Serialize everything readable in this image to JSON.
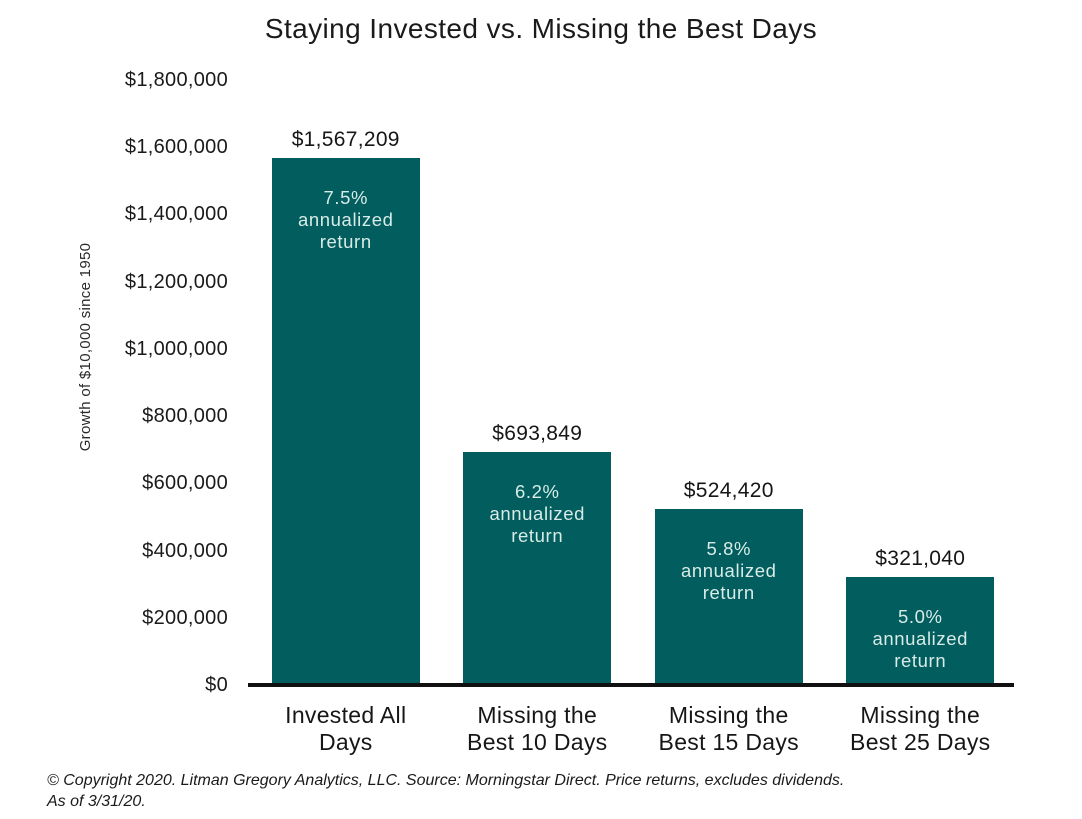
{
  "chart_data": {
    "type": "bar",
    "title": "Staying Invested vs. Missing the Best Days",
    "ylabel": "Growth of $10,000 since 1950",
    "xlabel": "",
    "categories": [
      "Invested All\nDays",
      "Missing the\nBest 10 Days",
      "Missing the\nBest 15 Days",
      "Missing the\nBest 25 Days"
    ],
    "values": [
      1567209,
      693849,
      524420,
      321040
    ],
    "value_labels": [
      "$1,567,209",
      "$693,849",
      "$524,420",
      "$321,040"
    ],
    "annotations": [
      "7.5%\nannualized\nreturn",
      "6.2%\nannualized\nreturn",
      "5.8%\nannualized\nreturn",
      "5.0%\nannualized\nreturn"
    ],
    "yticks": [
      0,
      200000,
      400000,
      600000,
      800000,
      1000000,
      1200000,
      1400000,
      1600000,
      1800000
    ],
    "ytick_labels": [
      "$0",
      "$200,000",
      "$400,000",
      "$600,000",
      "$800,000",
      "$1,000,000",
      "$1,200,000",
      "$1,400,000",
      "$1,600,000",
      "$1,800,000"
    ],
    "ylim": [
      0,
      1800000
    ],
    "grid": "off",
    "legend": "none",
    "bar_color": "#015d5e",
    "annotation_color": "#d8ebe7",
    "axis_color": "#111111"
  },
  "footer": {
    "line1": "© Copyright 2020. Litman Gregory Analytics, LLC. Source: Morningstar Direct. Price returns, excludes dividends.",
    "line2": "As of 3/31/20."
  }
}
